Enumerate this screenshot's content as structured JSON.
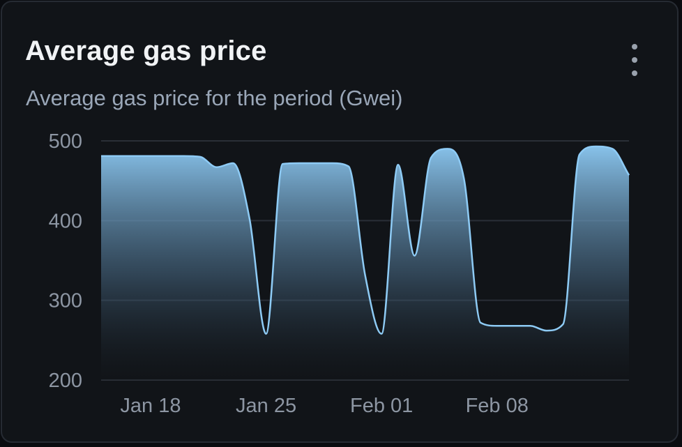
{
  "card": {
    "title": "Average gas price",
    "subtitle": "Average gas price for the period (Gwei)",
    "menu_icon": "more-vertical-icon"
  },
  "colors": {
    "line": "#8ecbf5",
    "fill_top": "#8ecbf5",
    "grid": "#2a2f37",
    "background": "#111418"
  },
  "chart_data": {
    "type": "area",
    "title": "",
    "xlabel": "",
    "ylabel": "",
    "ylim": [
      200,
      500
    ],
    "yticks": [
      200,
      300,
      400,
      500
    ],
    "xlim": [
      "2025-01-15",
      "2025-02-16"
    ],
    "xticks": [
      "Jan 18",
      "Jan 25",
      "Feb 01",
      "Feb 08"
    ],
    "xtick_dates": [
      "2025-01-18",
      "2025-01-25",
      "2025-02-01",
      "2025-02-08"
    ],
    "grid": true,
    "legend": "none",
    "x": [
      "2025-01-15",
      "2025-01-16",
      "2025-01-17",
      "2025-01-18",
      "2025-01-19",
      "2025-01-20",
      "2025-01-21",
      "2025-01-22",
      "2025-01-23",
      "2025-01-24",
      "2025-01-25",
      "2025-01-26",
      "2025-01-27",
      "2025-01-28",
      "2025-01-29",
      "2025-01-30",
      "2025-01-31",
      "2025-02-01",
      "2025-02-02",
      "2025-02-03",
      "2025-02-04",
      "2025-02-05",
      "2025-02-06",
      "2025-02-07",
      "2025-02-08",
      "2025-02-09",
      "2025-02-10",
      "2025-02-11",
      "2025-02-12",
      "2025-02-13",
      "2025-02-14",
      "2025-02-15",
      "2025-02-16"
    ],
    "series": [
      {
        "values": [
          481,
          481,
          481,
          481,
          481,
          481,
          480,
          467,
          472,
          402,
          258,
          471,
          472,
          472,
          472,
          468,
          332,
          258,
          470,
          356,
          479,
          490,
          452,
          272,
          268,
          268,
          268,
          262,
          270,
          483,
          493,
          490,
          457
        ]
      }
    ]
  }
}
